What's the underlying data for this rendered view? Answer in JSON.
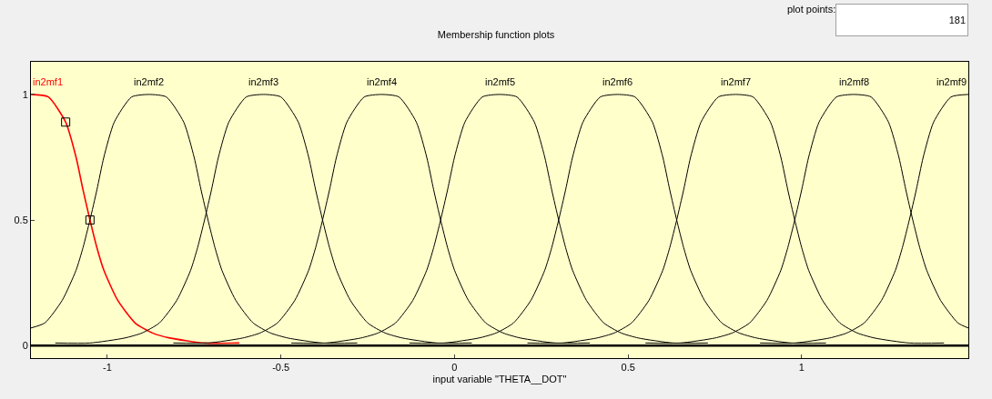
{
  "chart_data": {
    "type": "line",
    "title": "Membership function plots",
    "xlabel": "input variable \"THETA__DOT\"",
    "xlim": [
      -1.22,
      1.48
    ],
    "ylim": [
      -0.05,
      1.13
    ],
    "xticks": [
      -1,
      -0.5,
      0,
      0.5,
      1
    ],
    "yticks": [
      0,
      0.5,
      1
    ],
    "grid": false,
    "legend": false,
    "marker": "none",
    "line_style": "solid",
    "annotations": [
      "plot points:",
      "181"
    ],
    "ref_lines": [
      {
        "axis": "y",
        "value": 0,
        "color": "#000000"
      }
    ],
    "series": [
      {
        "name": "in2mf1",
        "color": "#ff0000",
        "x": [
          -1.22,
          -1.17,
          -1.12,
          -1.09,
          -1.07,
          -1.05,
          -1.03,
          -1.01,
          -0.97,
          -0.92,
          -0.87,
          -0.82,
          -0.72,
          -0.62
        ],
        "values": [
          1,
          0.99,
          0.89,
          0.75,
          0.62,
          0.5,
          0.39,
          0.3,
          0.18,
          0.09,
          0.05,
          0.03,
          0.01,
          0.01
        ]
      },
      {
        "name": "in2mf2",
        "color": "#000000",
        "x": [
          -1.22,
          -1.18,
          -1.13,
          -1.09,
          -1.07,
          -1.05,
          -1.03,
          -1.01,
          -0.98,
          -0.93,
          -0.88,
          -0.83,
          -0.78,
          -0.75,
          -0.73,
          -0.71,
          -0.69,
          -0.67,
          -0.63,
          -0.58,
          -0.53,
          -0.48,
          -0.38,
          -0.28
        ],
        "values": [
          0.07,
          0.09,
          0.18,
          0.3,
          0.39,
          0.5,
          0.62,
          0.75,
          0.89,
          0.99,
          1,
          0.99,
          0.89,
          0.75,
          0.62,
          0.5,
          0.39,
          0.3,
          0.18,
          0.09,
          0.05,
          0.03,
          0.01,
          0.01
        ]
      },
      {
        "name": "in2mf3",
        "color": "#000000",
        "x": [
          -1.15,
          -1.05,
          -0.95,
          -0.9,
          -0.85,
          -0.8,
          -0.76,
          -0.74,
          -0.72,
          -0.7,
          -0.68,
          -0.65,
          -0.6,
          -0.55,
          -0.5,
          -0.45,
          -0.42,
          -0.4,
          -0.38,
          -0.36,
          -0.34,
          -0.3,
          -0.25,
          -0.2,
          -0.15,
          -0.05,
          0.05
        ],
        "values": [
          0.01,
          0.01,
          0.03,
          0.05,
          0.09,
          0.18,
          0.3,
          0.39,
          0.5,
          0.62,
          0.75,
          0.89,
          0.99,
          1,
          0.99,
          0.89,
          0.75,
          0.62,
          0.5,
          0.39,
          0.3,
          0.18,
          0.09,
          0.05,
          0.03,
          0.01,
          0.01
        ]
      },
      {
        "name": "in2mf4",
        "color": "#000000",
        "x": [
          -0.81,
          -0.71,
          -0.61,
          -0.56,
          -0.51,
          -0.46,
          -0.42,
          -0.4,
          -0.38,
          -0.36,
          -0.34,
          -0.31,
          -0.26,
          -0.21,
          -0.16,
          -0.11,
          -0.08,
          -0.06,
          -0.04,
          -0.02,
          0,
          0.04,
          0.09,
          0.14,
          0.19,
          0.29,
          0.39
        ],
        "values": [
          0.01,
          0.01,
          0.03,
          0.05,
          0.09,
          0.18,
          0.3,
          0.39,
          0.5,
          0.62,
          0.75,
          0.89,
          0.99,
          1,
          0.99,
          0.89,
          0.75,
          0.62,
          0.5,
          0.39,
          0.3,
          0.18,
          0.09,
          0.05,
          0.03,
          0.01,
          0.01
        ]
      },
      {
        "name": "in2mf5",
        "color": "#000000",
        "x": [
          -0.47,
          -0.37,
          -0.27,
          -0.22,
          -0.17,
          -0.12,
          -0.08,
          -0.06,
          -0.04,
          -0.02,
          0,
          0.03,
          0.08,
          0.13,
          0.18,
          0.23,
          0.26,
          0.28,
          0.3,
          0.32,
          0.34,
          0.38,
          0.43,
          0.48,
          0.53,
          0.63,
          0.73
        ],
        "values": [
          0.01,
          0.01,
          0.03,
          0.05,
          0.09,
          0.18,
          0.3,
          0.39,
          0.5,
          0.62,
          0.75,
          0.89,
          0.99,
          1,
          0.99,
          0.89,
          0.75,
          0.62,
          0.5,
          0.39,
          0.3,
          0.18,
          0.09,
          0.05,
          0.03,
          0.01,
          0.01
        ]
      },
      {
        "name": "in2mf6",
        "color": "#000000",
        "x": [
          -0.13,
          -0.03,
          0.07,
          0.12,
          0.17,
          0.22,
          0.26,
          0.28,
          0.3,
          0.32,
          0.34,
          0.37,
          0.42,
          0.47,
          0.52,
          0.57,
          0.6,
          0.62,
          0.64,
          0.66,
          0.68,
          0.72,
          0.77,
          0.82,
          0.87,
          0.97,
          1.07
        ],
        "values": [
          0.01,
          0.01,
          0.03,
          0.05,
          0.09,
          0.18,
          0.3,
          0.39,
          0.5,
          0.62,
          0.75,
          0.89,
          0.99,
          1,
          0.99,
          0.89,
          0.75,
          0.62,
          0.5,
          0.39,
          0.3,
          0.18,
          0.09,
          0.05,
          0.03,
          0.01,
          0.01
        ]
      },
      {
        "name": "in2mf7",
        "color": "#000000",
        "x": [
          0.21,
          0.31,
          0.41,
          0.46,
          0.51,
          0.56,
          0.6,
          0.62,
          0.64,
          0.66,
          0.68,
          0.71,
          0.76,
          0.81,
          0.86,
          0.91,
          0.94,
          0.96,
          0.98,
          1,
          1.02,
          1.06,
          1.11,
          1.16,
          1.21,
          1.31,
          1.41
        ],
        "values": [
          0.01,
          0.01,
          0.03,
          0.05,
          0.09,
          0.18,
          0.3,
          0.39,
          0.5,
          0.62,
          0.75,
          0.89,
          0.99,
          1,
          0.99,
          0.89,
          0.75,
          0.62,
          0.5,
          0.39,
          0.3,
          0.18,
          0.09,
          0.05,
          0.03,
          0.01,
          0.01
        ]
      },
      {
        "name": "in2mf8",
        "color": "#000000",
        "x": [
          0.55,
          0.65,
          0.75,
          0.8,
          0.85,
          0.9,
          0.94,
          0.96,
          0.98,
          1,
          1.02,
          1.05,
          1.1,
          1.15,
          1.2,
          1.25,
          1.28,
          1.3,
          1.32,
          1.34,
          1.36,
          1.4,
          1.45,
          1.48
        ],
        "values": [
          0.01,
          0.01,
          0.03,
          0.05,
          0.09,
          0.18,
          0.3,
          0.39,
          0.5,
          0.62,
          0.75,
          0.89,
          0.99,
          1,
          0.99,
          0.89,
          0.75,
          0.62,
          0.5,
          0.39,
          0.3,
          0.18,
          0.09,
          0.07
        ]
      },
      {
        "name": "in2mf9",
        "color": "#000000",
        "x": [
          0.88,
          0.98,
          1.08,
          1.13,
          1.18,
          1.23,
          1.27,
          1.29,
          1.31,
          1.33,
          1.35,
          1.38,
          1.43,
          1.48
        ],
        "values": [
          0.01,
          0.01,
          0.03,
          0.05,
          0.09,
          0.18,
          0.3,
          0.39,
          0.5,
          0.62,
          0.75,
          0.89,
          0.99,
          1
        ]
      },
      {
        "type": "scatter",
        "marker": "square",
        "color": "#000000",
        "x": [
          -1.12,
          -1.05
        ],
        "values": [
          0.89,
          0.5
        ]
      }
    ]
  }
}
